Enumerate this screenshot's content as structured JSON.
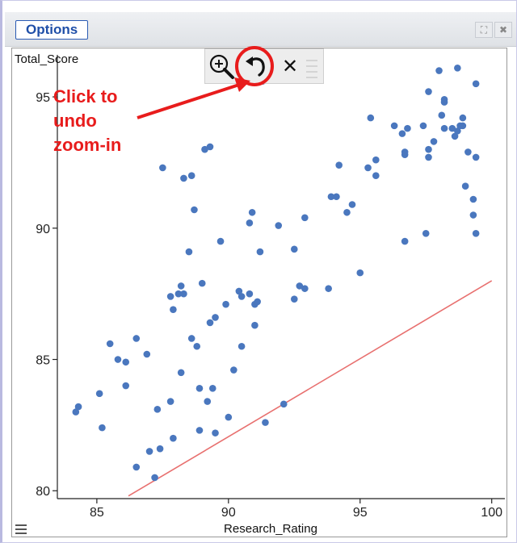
{
  "window": {
    "options_label": "Options",
    "expand_glyph": "⛶",
    "close_glyph": "✖"
  },
  "toolbar": {
    "zoom_icon": "zoom-in-icon",
    "undo_icon": "undo-icon",
    "close_icon": "close-icon",
    "close_glyph": "✕"
  },
  "annotation": {
    "lines": [
      "Click to",
      "undo",
      "zoom-in"
    ],
    "color": "#e81c1c"
  },
  "chart_data": {
    "type": "scatter",
    "xlabel": "Research_Rating",
    "ylabel": "Total_Score",
    "xlim": [
      83.5,
      100.5
    ],
    "ylim": [
      79.7,
      96.6
    ],
    "xticks": [
      85,
      90,
      95,
      100
    ],
    "yticks": [
      80,
      85,
      90,
      95
    ],
    "point_color": "#4a77be",
    "line_color": "#e8706f",
    "reference_line": [
      [
        86.2,
        79.8
      ],
      [
        100,
        88
      ]
    ],
    "grid": false,
    "points": [
      [
        84.2,
        83.0
      ],
      [
        84.3,
        83.2
      ],
      [
        85.1,
        83.7
      ],
      [
        85.2,
        82.4
      ],
      [
        85.5,
        85.6
      ],
      [
        85.8,
        85.0
      ],
      [
        86.1,
        84.9
      ],
      [
        86.1,
        84.0
      ],
      [
        86.5,
        85.8
      ],
      [
        86.5,
        80.9
      ],
      [
        86.9,
        85.2
      ],
      [
        87.0,
        81.5
      ],
      [
        87.2,
        80.5
      ],
      [
        87.4,
        81.6
      ],
      [
        87.3,
        83.1
      ],
      [
        87.5,
        92.3
      ],
      [
        87.8,
        83.4
      ],
      [
        87.9,
        82.0
      ],
      [
        87.8,
        87.4
      ],
      [
        87.9,
        86.9
      ],
      [
        88.1,
        87.5
      ],
      [
        88.2,
        87.8
      ],
      [
        88.2,
        84.5
      ],
      [
        88.3,
        91.9
      ],
      [
        88.3,
        87.5
      ],
      [
        88.5,
        89.1
      ],
      [
        88.6,
        92.0
      ],
      [
        88.6,
        85.8
      ],
      [
        88.7,
        90.7
      ],
      [
        88.8,
        85.5
      ],
      [
        88.9,
        83.9
      ],
      [
        88.9,
        82.3
      ],
      [
        89.0,
        87.9
      ],
      [
        89.1,
        93.0
      ],
      [
        89.2,
        83.4
      ],
      [
        89.3,
        93.1
      ],
      [
        89.3,
        86.4
      ],
      [
        89.4,
        83.9
      ],
      [
        89.5,
        86.6
      ],
      [
        89.5,
        82.2
      ],
      [
        89.7,
        89.5
      ],
      [
        89.9,
        87.1
      ],
      [
        90.0,
        82.8
      ],
      [
        90.2,
        84.6
      ],
      [
        90.4,
        87.6
      ],
      [
        90.5,
        87.4
      ],
      [
        90.5,
        85.5
      ],
      [
        90.8,
        90.2
      ],
      [
        90.8,
        87.5
      ],
      [
        90.9,
        90.6
      ],
      [
        91.0,
        87.1
      ],
      [
        91.0,
        86.3
      ],
      [
        91.1,
        87.2
      ],
      [
        91.2,
        89.1
      ],
      [
        91.3,
        95.6
      ],
      [
        91.4,
        82.6
      ],
      [
        91.9,
        90.1
      ],
      [
        92.1,
        83.3
      ],
      [
        92.5,
        89.2
      ],
      [
        92.5,
        87.3
      ],
      [
        92.7,
        87.8
      ],
      [
        92.9,
        87.7
      ],
      [
        92.9,
        90.4
      ],
      [
        93.8,
        87.7
      ],
      [
        93.9,
        91.2
      ],
      [
        94.1,
        91.2
      ],
      [
        94.2,
        92.4
      ],
      [
        94.5,
        90.6
      ],
      [
        94.7,
        90.9
      ],
      [
        95.0,
        88.3
      ],
      [
        95.3,
        92.3
      ],
      [
        95.4,
        94.2
      ],
      [
        95.6,
        92.6
      ],
      [
        95.6,
        92.0
      ],
      [
        96.3,
        93.9
      ],
      [
        96.6,
        93.6
      ],
      [
        96.7,
        89.5
      ],
      [
        96.7,
        92.8
      ],
      [
        96.7,
        92.9
      ],
      [
        96.8,
        93.8
      ],
      [
        97.4,
        93.9
      ],
      [
        97.5,
        89.8
      ],
      [
        97.6,
        92.7
      ],
      [
        97.6,
        95.2
      ],
      [
        97.6,
        93.0
      ],
      [
        97.8,
        93.3
      ],
      [
        98.0,
        96.0
      ],
      [
        98.1,
        94.3
      ],
      [
        98.2,
        94.9
      ],
      [
        98.2,
        94.8
      ],
      [
        98.2,
        93.8
      ],
      [
        98.5,
        93.8
      ],
      [
        98.6,
        93.5
      ],
      [
        98.7,
        96.1
      ],
      [
        98.7,
        93.7
      ],
      [
        98.8,
        93.9
      ],
      [
        98.9,
        94.2
      ],
      [
        98.9,
        93.9
      ],
      [
        99.0,
        91.6
      ],
      [
        99.1,
        92.9
      ],
      [
        99.3,
        91.1
      ],
      [
        99.3,
        90.5
      ],
      [
        99.4,
        95.5
      ],
      [
        99.4,
        92.7
      ],
      [
        99.4,
        89.8
      ]
    ]
  }
}
